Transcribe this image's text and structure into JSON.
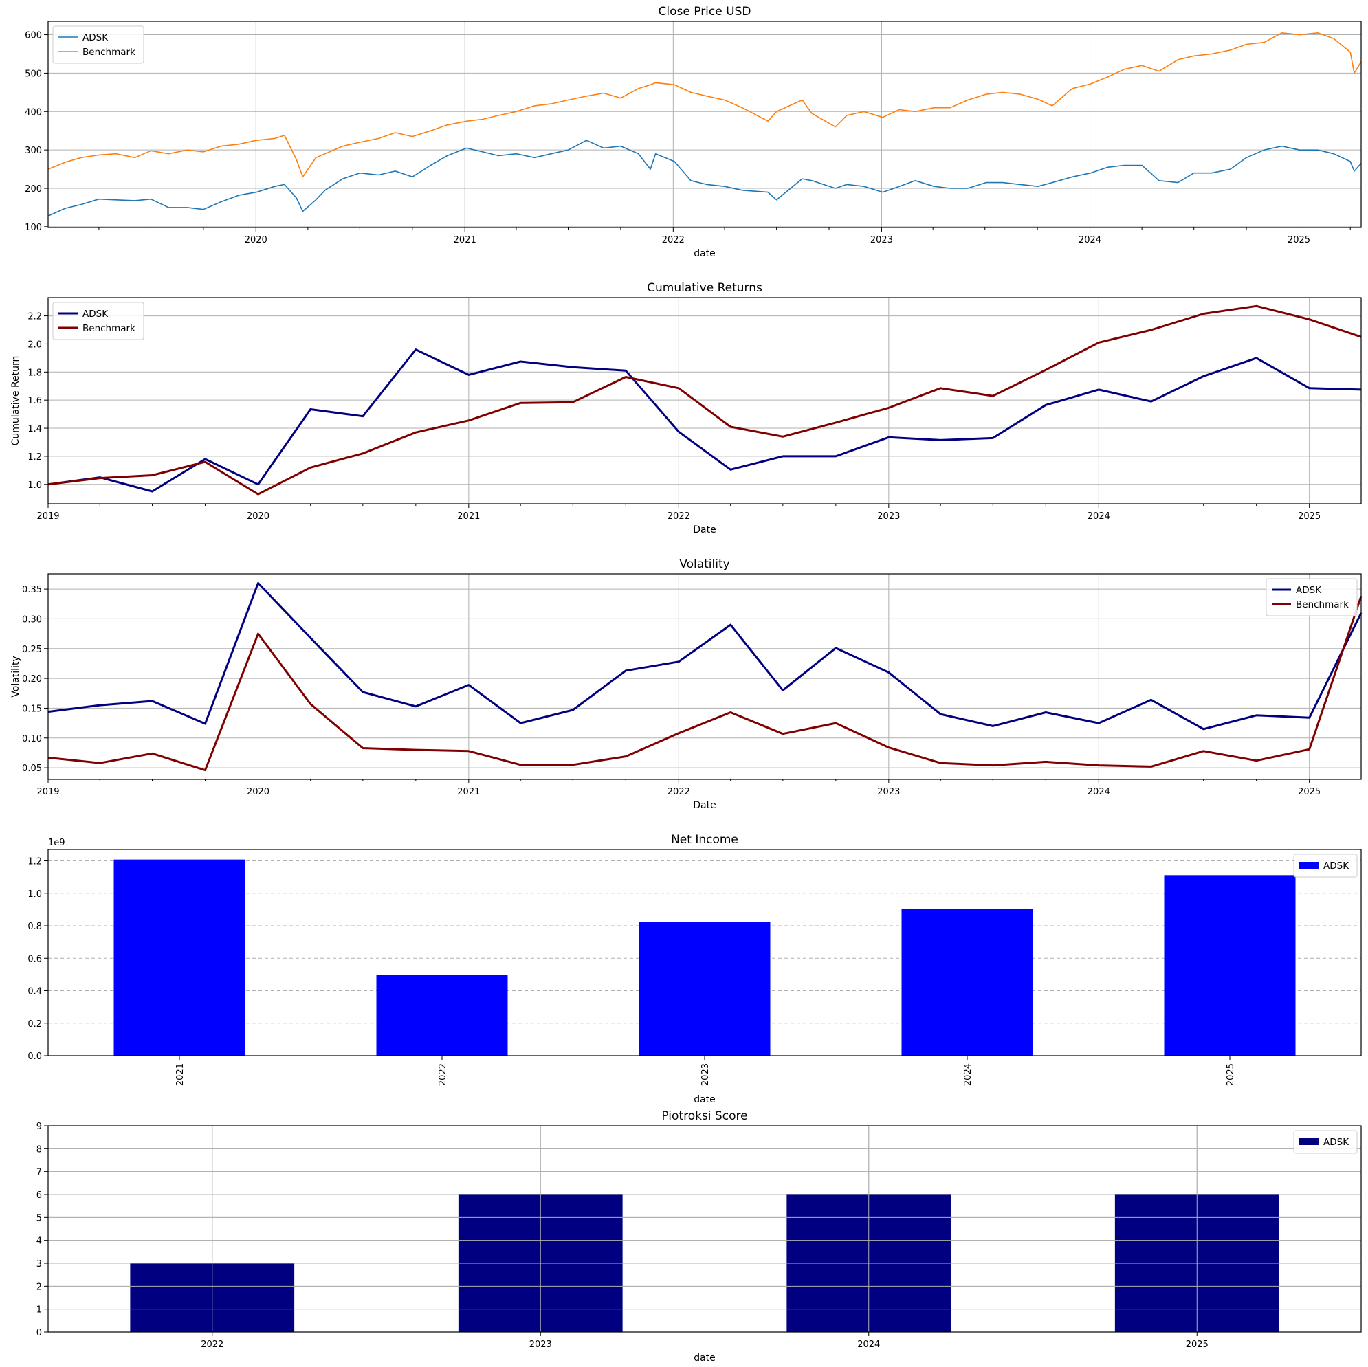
{
  "chart_data": [
    {
      "type": "line",
      "title": "Close Price USD",
      "xlabel": "date",
      "ylabel": "",
      "xlim": [
        "2019-01-02",
        "2025-04-20"
      ],
      "ylim": [
        98,
        635
      ],
      "x_ticks": [
        "2020",
        "2021",
        "2022",
        "2023",
        "2024",
        "2025"
      ],
      "y_ticks": [
        100,
        200,
        300,
        400,
        500,
        600
      ],
      "grid": true,
      "legend_loc": "upper left",
      "dense_x": [
        "2019-01-02",
        "2019-02-01",
        "2019-03-01",
        "2019-04-01",
        "2019-05-01",
        "2019-06-03",
        "2019-07-01",
        "2019-08-01",
        "2019-09-03",
        "2019-10-01",
        "2019-11-01",
        "2019-12-02",
        "2020-01-02",
        "2020-02-03",
        "2020-02-20",
        "2020-03-12",
        "2020-03-23",
        "2020-04-15",
        "2020-05-01",
        "2020-06-01",
        "2020-07-01",
        "2020-08-03",
        "2020-09-01",
        "2020-10-01",
        "2020-11-02",
        "2020-12-01",
        "2021-01-04",
        "2021-02-01",
        "2021-03-01",
        "2021-04-01",
        "2021-05-03",
        "2021-06-01",
        "2021-07-01",
        "2021-08-02",
        "2021-09-01",
        "2021-10-01",
        "2021-11-01",
        "2021-11-22",
        "2021-12-01",
        "2022-01-03",
        "2022-02-01",
        "2022-03-01",
        "2022-04-01",
        "2022-05-02",
        "2022-06-16",
        "2022-07-01",
        "2022-08-15",
        "2022-09-01",
        "2022-10-12",
        "2022-11-01",
        "2022-12-01",
        "2023-01-03",
        "2023-02-01",
        "2023-03-01",
        "2023-04-03",
        "2023-05-01",
        "2023-06-01",
        "2023-07-03",
        "2023-08-01",
        "2023-09-01",
        "2023-10-02",
        "2023-10-27",
        "2023-12-01",
        "2024-01-02",
        "2024-02-01",
        "2024-03-01",
        "2024-04-01",
        "2024-05-01",
        "2024-06-03",
        "2024-07-01",
        "2024-08-01",
        "2024-09-03",
        "2024-10-01",
        "2024-11-01",
        "2024-12-02",
        "2025-01-02",
        "2025-02-03",
        "2025-03-03",
        "2025-04-01",
        "2025-04-08",
        "2025-04-20"
      ],
      "series": [
        {
          "name": "ADSK",
          "color": "#1f77b4",
          "width": 1.6,
          "values": [
            128,
            148,
            158,
            172,
            170,
            168,
            172,
            150,
            150,
            145,
            165,
            182,
            190,
            205,
            210,
            175,
            140,
            170,
            195,
            225,
            240,
            235,
            245,
            230,
            260,
            285,
            305,
            295,
            285,
            290,
            280,
            290,
            300,
            325,
            305,
            310,
            290,
            250,
            290,
            270,
            220,
            210,
            205,
            195,
            190,
            170,
            225,
            220,
            200,
            210,
            205,
            190,
            205,
            220,
            205,
            200,
            200,
            215,
            215,
            210,
            205,
            215,
            230,
            240,
            255,
            260,
            260,
            220,
            215,
            240,
            240,
            250,
            280,
            300,
            310,
            300,
            300,
            290,
            270,
            245,
            265
          ]
        },
        {
          "name": "Benchmark",
          "color": "#ff7f0e",
          "width": 1.6,
          "values": [
            250,
            268,
            280,
            287,
            290,
            280,
            298,
            290,
            300,
            295,
            310,
            315,
            325,
            330,
            338,
            275,
            230,
            280,
            290,
            310,
            320,
            330,
            345,
            335,
            350,
            365,
            375,
            380,
            390,
            400,
            415,
            420,
            430,
            440,
            448,
            435,
            460,
            470,
            475,
            470,
            450,
            440,
            430,
            410,
            375,
            400,
            430,
            395,
            360,
            390,
            400,
            385,
            405,
            400,
            410,
            410,
            430,
            445,
            450,
            445,
            432,
            415,
            460,
            472,
            490,
            510,
            520,
            505,
            535,
            545,
            550,
            560,
            575,
            580,
            605,
            600,
            605,
            590,
            555,
            500,
            530
          ]
        }
      ]
    },
    {
      "type": "line",
      "title": "Cumulative Returns",
      "xlabel": "Date",
      "ylabel": "Cumulative Return",
      "x_ticks": [
        "2019",
        "2020",
        "2021",
        "2022",
        "2023",
        "2024",
        "2025"
      ],
      "y_ticks": [
        1.0,
        1.2,
        1.4,
        1.6,
        1.8,
        2.0,
        2.2
      ],
      "ylim": [
        0.862,
        2.33
      ],
      "grid": true,
      "legend_loc": "upper left",
      "x": [
        "2019-01",
        "2019-04",
        "2019-07",
        "2019-10",
        "2020-01",
        "2020-04",
        "2020-07",
        "2020-10",
        "2021-01",
        "2021-04",
        "2021-07",
        "2021-10",
        "2022-01",
        "2022-04",
        "2022-07",
        "2022-10",
        "2023-01",
        "2023-04",
        "2023-07",
        "2023-10",
        "2024-01",
        "2024-04",
        "2024-07",
        "2024-10",
        "2025-01",
        "2025-04"
      ],
      "series": [
        {
          "name": "ADSK",
          "color": "#000080",
          "width": 3,
          "values": [
            1.0,
            1.05,
            0.95,
            1.18,
            1.0,
            1.535,
            1.485,
            1.96,
            1.78,
            1.875,
            1.835,
            1.81,
            1.375,
            1.105,
            1.2,
            1.2,
            1.335,
            1.315,
            1.33,
            1.565,
            1.675,
            1.59,
            1.77,
            1.9,
            1.685,
            1.675
          ]
        },
        {
          "name": "Benchmark",
          "color": "#800000",
          "width": 3,
          "values": [
            1.0,
            1.045,
            1.065,
            1.16,
            0.93,
            1.12,
            1.22,
            1.37,
            1.455,
            1.58,
            1.585,
            1.765,
            1.685,
            1.41,
            1.34,
            1.44,
            1.545,
            1.685,
            1.63,
            1.815,
            2.01,
            2.1,
            2.215,
            2.27,
            2.175,
            2.05
          ]
        }
      ]
    },
    {
      "type": "line",
      "title": "Volatility",
      "xlabel": "Date",
      "ylabel": "Volatility",
      "x_ticks": [
        "2019",
        "2020",
        "2021",
        "2022",
        "2023",
        "2024",
        "2025"
      ],
      "y_ticks": [
        0.05,
        0.1,
        0.15,
        0.2,
        0.25,
        0.3,
        0.35
      ],
      "ylim": [
        0.0305,
        0.3755
      ],
      "grid": true,
      "legend_loc": "upper right",
      "x": [
        "2019-01",
        "2019-04",
        "2019-07",
        "2019-10",
        "2020-01",
        "2020-04",
        "2020-07",
        "2020-10",
        "2021-01",
        "2021-04",
        "2021-07",
        "2021-10",
        "2022-01",
        "2022-04",
        "2022-07",
        "2022-10",
        "2023-01",
        "2023-04",
        "2023-07",
        "2023-10",
        "2024-01",
        "2024-04",
        "2024-07",
        "2024-10",
        "2025-01",
        "2025-04"
      ],
      "series": [
        {
          "name": "ADSK",
          "color": "#000080",
          "width": 3,
          "values": [
            0.144,
            0.155,
            0.162,
            0.124,
            0.36,
            0.268,
            0.177,
            0.153,
            0.189,
            0.125,
            0.147,
            0.213,
            0.228,
            0.29,
            0.18,
            0.251,
            0.21,
            0.14,
            0.12,
            0.143,
            0.125,
            0.164,
            0.115,
            0.138,
            0.134,
            0.31
          ]
        },
        {
          "name": "Benchmark",
          "color": "#800000",
          "width": 3,
          "values": [
            0.067,
            0.058,
            0.074,
            0.046,
            0.275,
            0.157,
            0.083,
            0.08,
            0.078,
            0.055,
            0.055,
            0.069,
            0.108,
            0.143,
            0.107,
            0.125,
            0.084,
            0.058,
            0.054,
            0.06,
            0.054,
            0.052,
            0.078,
            0.062,
            0.081,
            0.338
          ]
        }
      ]
    },
    {
      "type": "bar",
      "title": "Net Income",
      "xlabel": "date",
      "ylabel": "",
      "offset_label": "1e9",
      "categories": [
        "2021",
        "2022",
        "2023",
        "2024",
        "2025"
      ],
      "y_ticks": [
        0.0,
        0.2,
        0.4,
        0.6,
        0.8,
        1.0,
        1.2
      ],
      "ylim": [
        0,
        1.27
      ],
      "grid": "y-dashed",
      "legend_loc": "upper right",
      "series": [
        {
          "name": "ADSK",
          "color": "#0000ff",
          "values": [
            1.208,
            0.497,
            0.823,
            0.906,
            1.112
          ]
        }
      ]
    },
    {
      "type": "bar",
      "title": "Piotroksi Score",
      "xlabel": "date",
      "ylabel": "",
      "categories": [
        "2022",
        "2023",
        "2024",
        "2025"
      ],
      "y_ticks": [
        0,
        1,
        2,
        3,
        4,
        5,
        6,
        7,
        8,
        9
      ],
      "ylim": [
        0,
        9
      ],
      "grid": true,
      "legend_loc": "upper right",
      "series": [
        {
          "name": "ADSK",
          "color": "#000080",
          "values": [
            3,
            6,
            6,
            6
          ]
        }
      ]
    }
  ]
}
